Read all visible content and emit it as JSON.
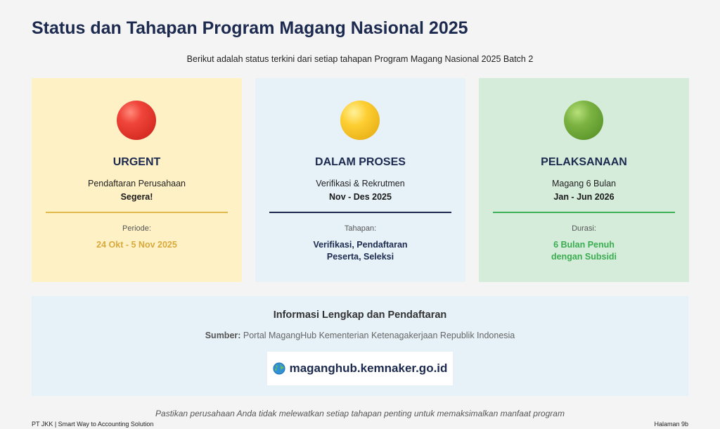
{
  "header": {
    "title": "Status dan Tahapan Program Magang Nasional 2025",
    "subtitle": "Berikut adalah status terkini dari setiap tahapan Program Magang Nasional 2025 Batch 2"
  },
  "cards": [
    {
      "status": "URGENT",
      "description": "Pendaftaran Perusahaan",
      "highlight": "Segera!",
      "meta_label": "Periode:",
      "meta_value_line1": "24 Okt - 5 Nov 2025",
      "meta_value_line2": "",
      "indicator_color": "#f0453a",
      "accent_color": "#e0b94a"
    },
    {
      "status": "DALAM PROSES",
      "description": "Verifikasi & Rekrutmen",
      "highlight": "Nov - Des 2025",
      "meta_label": "Tahapan:",
      "meta_value_line1": "Verifikasi, Pendaftaran",
      "meta_value_line2": "Peserta, Seleksi",
      "indicator_color": "#fdce32",
      "accent_color": "#1c2a4f"
    },
    {
      "status": "PELAKSANAAN",
      "description": "Magang 6 Bulan",
      "highlight": "Jan - Jun 2026",
      "meta_label": "Durasi:",
      "meta_value_line1": "6 Bulan Penuh",
      "meta_value_line2": "dengan Subsidi",
      "indicator_color": "#7cb342",
      "accent_color": "#3cb054"
    }
  ],
  "info": {
    "title": "Informasi Lengkap dan Pendaftaran",
    "source_label": "Sumber:",
    "source_text": " Portal MagangHub Kementerian Ketenagakerjaan Republik Indonesia",
    "link_icon": "globe-icon",
    "link_text": "maganghub.kemnaker.go.id"
  },
  "note": "Pastikan perusahaan Anda tidak melewatkan setiap tahapan penting untuk memaksimalkan manfaat program",
  "footer": {
    "left": "PT JKK | Smart Way to Accounting Solution",
    "right": "Halaman 9b"
  }
}
